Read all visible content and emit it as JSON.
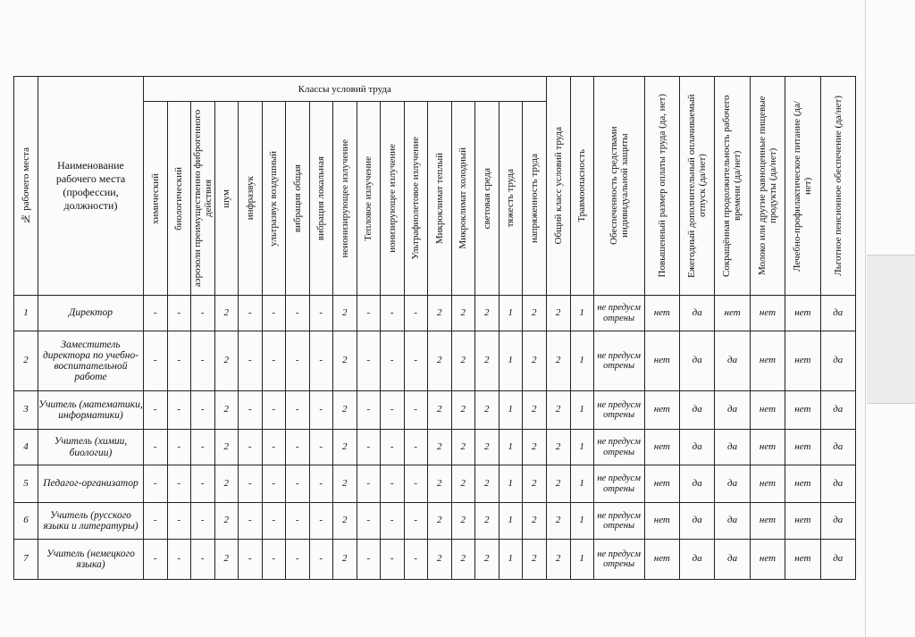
{
  "table": {
    "group_header": "Классы условий труда",
    "headers": [
      "№ рабочего места",
      "Наименование рабочего места (профессии, должности)",
      "химический",
      "биологический",
      "аэрозоли преимущественно фиброгенного действия",
      "шум",
      "инфразвук",
      "ультразвук воздушный",
      "вибрация общая",
      "вибрация локальная",
      "неионизирующее излучение",
      "Тепловое излучение",
      "ионизирующее излучение",
      "Ультрафиолетовое излучение",
      "Микроклимат теплый",
      "Микроклимат холодный",
      "световая среда",
      "тяжесть труда",
      "напряженность труда",
      "Общий класс условий труда",
      "Травмоопасность",
      "Обеспеченность средствами индивидуальной защиты",
      "Повышенный размер оплаты труда (да, нет)",
      "Ежегодный дополнительный оплачиваемый отпуск (да/нет)",
      "Сокращённая продолжительность рабочего времени (да/нет)",
      "Молоко или другие равноценные пищевые продукты (да/нет)",
      "Лечебно-профилактическое питание (да/нет)",
      "Льготное пенсионное обеспечение (да/нет)"
    ],
    "rows": [
      [
        "1",
        "Директор",
        "-",
        "-",
        "-",
        "2",
        "-",
        "-",
        "-",
        "-",
        "2",
        "-",
        "-",
        "-",
        "2",
        "2",
        "2",
        "1",
        "2",
        "2",
        "1",
        "не предусм отрены",
        "нет",
        "да",
        "нет",
        "нет",
        "нет",
        "да"
      ],
      [
        "2",
        "Заместитель директора по учебно-воспитательной работе",
        "-",
        "-",
        "-",
        "2",
        "-",
        "-",
        "-",
        "-",
        "2",
        "-",
        "-",
        "-",
        "2",
        "2",
        "2",
        "1",
        "2",
        "2",
        "1",
        "не предусм отрены",
        "нет",
        "да",
        "да",
        "нет",
        "нет",
        "да"
      ],
      [
        "3",
        "Учитель (математики, информатики)",
        "-",
        "-",
        "-",
        "2",
        "-",
        "-",
        "-",
        "-",
        "2",
        "-",
        "-",
        "-",
        "2",
        "2",
        "2",
        "1",
        "2",
        "2",
        "1",
        "не предусм отрены",
        "нет",
        "да",
        "да",
        "нет",
        "нет",
        "да"
      ],
      [
        "4",
        "Учитель (химии, биологии)",
        "-",
        "-",
        "-",
        "2",
        "-",
        "-",
        "-",
        "-",
        "2",
        "-",
        "-",
        "-",
        "2",
        "2",
        "2",
        "1",
        "2",
        "2",
        "1",
        "не предусм отрены",
        "нет",
        "да",
        "да",
        "нет",
        "нет",
        "да"
      ],
      [
        "5",
        "Педагог-организатор",
        "-",
        "-",
        "-",
        "2",
        "-",
        "-",
        "-",
        "-",
        "2",
        "-",
        "-",
        "-",
        "2",
        "2",
        "2",
        "1",
        "2",
        "2",
        "1",
        "не предусм отрены",
        "нет",
        "да",
        "да",
        "нет",
        "нет",
        "да"
      ],
      [
        "6",
        "Учитель (русского языки и литературы)",
        "-",
        "-",
        "-",
        "2",
        "-",
        "-",
        "-",
        "-",
        "2",
        "-",
        "-",
        "-",
        "2",
        "2",
        "2",
        "1",
        "2",
        "2",
        "1",
        "не предусм отрены",
        "нет",
        "да",
        "да",
        "нет",
        "нет",
        "да"
      ],
      [
        "7",
        "Учитель (немецкого языка)",
        "-",
        "-",
        "-",
        "2",
        "-",
        "-",
        "-",
        "-",
        "2",
        "-",
        "-",
        "-",
        "2",
        "2",
        "2",
        "1",
        "2",
        "2",
        "1",
        "не предусм отрены",
        "нет",
        "да",
        "да",
        "нет",
        "нет",
        "да"
      ]
    ]
  }
}
